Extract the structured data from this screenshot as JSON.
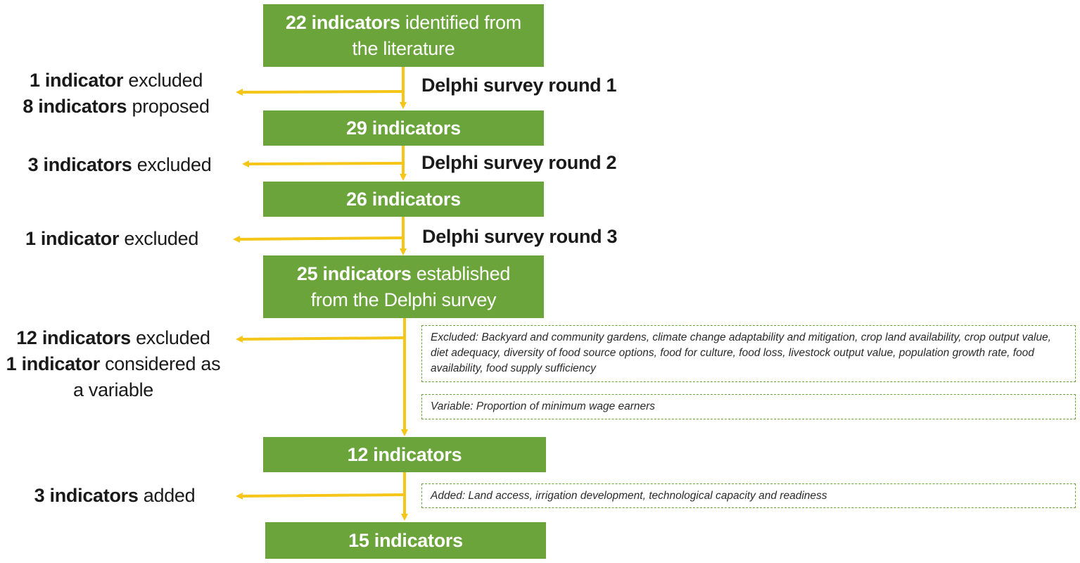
{
  "boxes": [
    {
      "bold": "22 indicators",
      "rest": " identified from",
      "line2": "the literature"
    },
    {
      "bold": "29 indicators",
      "rest": "",
      "line2": ""
    },
    {
      "bold": "26 indicators",
      "rest": "",
      "line2": ""
    },
    {
      "bold": "25 indicators",
      "rest": " established",
      "line2": "from the Delphi survey"
    },
    {
      "bold": "12 indicators",
      "rest": "",
      "line2": ""
    },
    {
      "bold": "15 indicators",
      "rest": "",
      "line2": ""
    }
  ],
  "rounds": [
    "Delphi survey round 1",
    "Delphi survey round 2",
    "Delphi survey round 3"
  ],
  "side_notes": [
    {
      "l1_bold": "1 indicator",
      "l1_rest": " excluded",
      "l2_bold": "8 indicators",
      "l2_rest": " proposed"
    },
    {
      "l1_bold": "3 indicators",
      "l1_rest": " excluded"
    },
    {
      "l1_bold": "1 indicator",
      "l1_rest": " excluded"
    },
    {
      "l1_bold": "12 indicators",
      "l1_rest": " excluded",
      "l2_bold": "1 indicator",
      "l2_rest": " considered as",
      "l3": "a variable"
    },
    {
      "l1_bold": "3 indicators",
      "l1_rest": " added"
    }
  ],
  "notes": {
    "excluded": "Excluded: Backyard and community gardens, climate change adaptability and mitigation, crop land availability, crop output value, diet adequacy, diversity of food source options, food for culture, food loss, livestock output value, population growth rate, food availability, food supply sufficiency",
    "variable": "Variable: Proportion of minimum wage earners",
    "added": "Added: Land access, irrigation development, technological capacity and readiness"
  },
  "colors": {
    "box": "#6aa43a",
    "arrow": "#f5c518",
    "dashed": "#6aa43a"
  }
}
